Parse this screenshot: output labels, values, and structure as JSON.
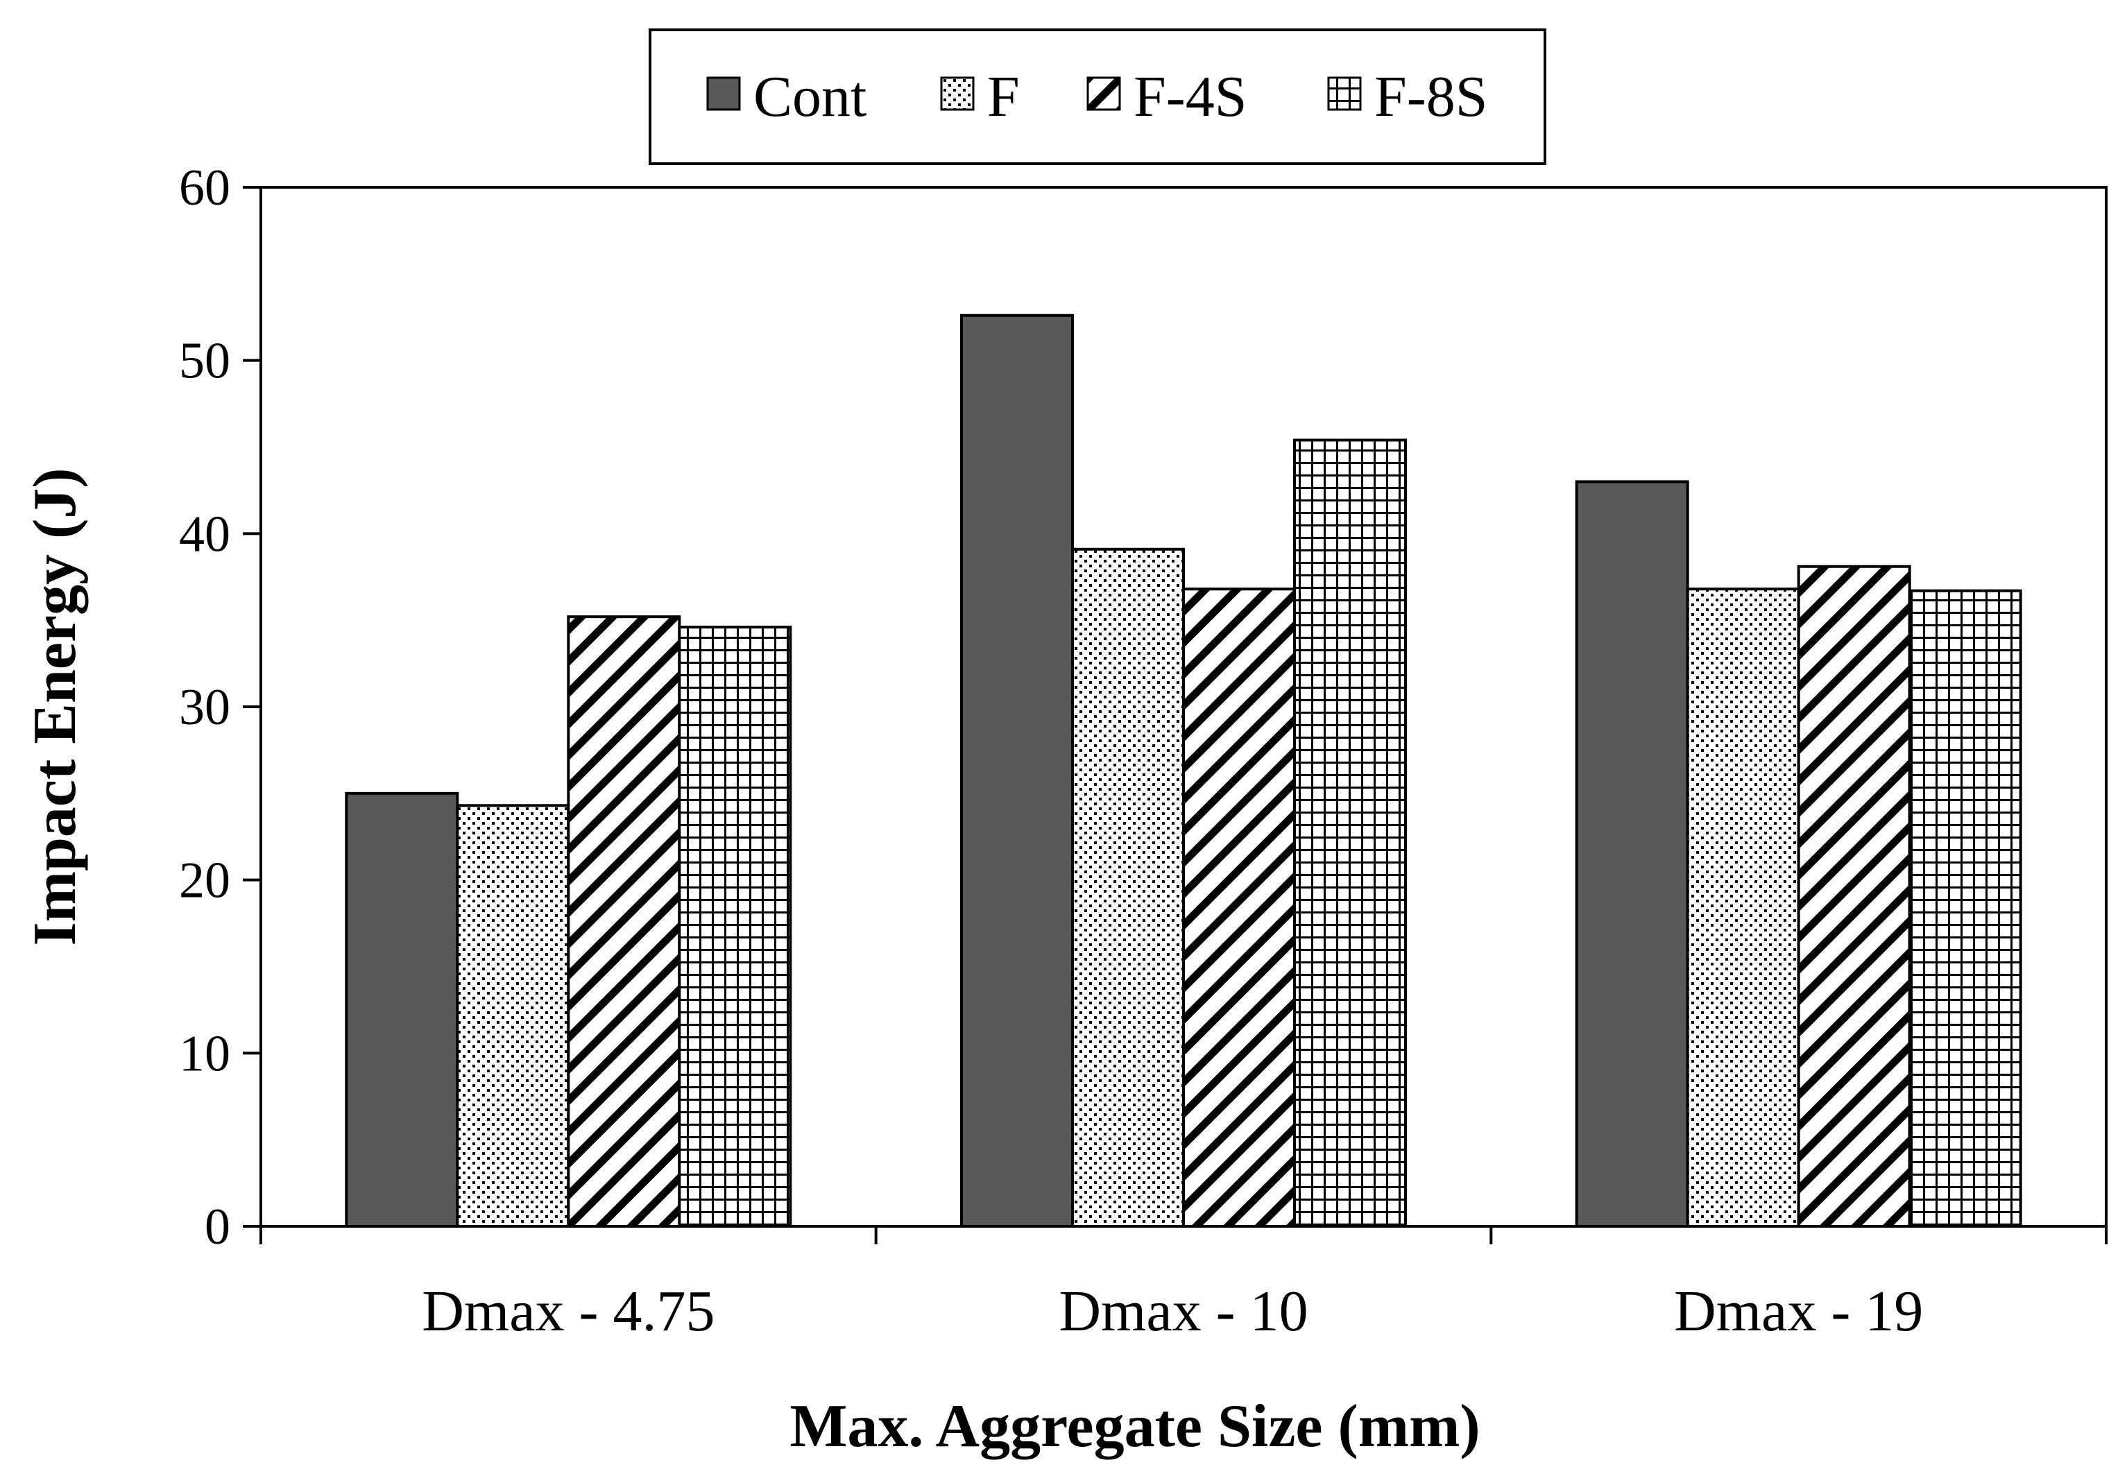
{
  "chart_data": {
    "type": "bar",
    "categories": [
      "Dmax - 4.75",
      "Dmax - 10",
      "Dmax - 19"
    ],
    "series": [
      {
        "name": "Cont",
        "pattern": "solid",
        "values": [
          25.0,
          52.6,
          43.0
        ]
      },
      {
        "name": "F",
        "pattern": "dots",
        "values": [
          24.3,
          39.1,
          36.8
        ]
      },
      {
        "name": "F-4S",
        "pattern": "diagonal",
        "values": [
          35.2,
          36.8,
          38.1
        ]
      },
      {
        "name": "F-8S",
        "pattern": "grid",
        "values": [
          34.6,
          45.4,
          36.7
        ]
      }
    ],
    "title": "",
    "xlabel": "Max. Aggregate Size (mm)",
    "ylabel": "Impact Energy (J)",
    "ylim": [
      0,
      60
    ],
    "yticks": [
      "0",
      "10",
      "20",
      "30",
      "40",
      "50",
      "60"
    ],
    "grid": false,
    "legend_position": "top-center",
    "colors": {
      "solid": "#595959",
      "edge": "#000000",
      "background": "#ffffff"
    }
  }
}
